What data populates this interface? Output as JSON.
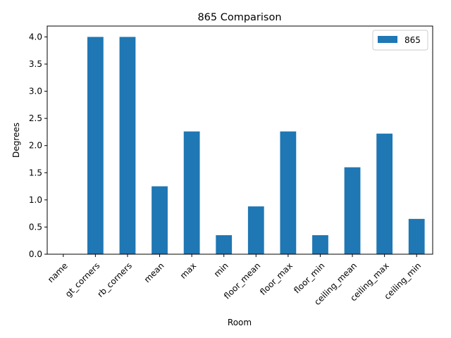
{
  "chart_data": {
    "type": "bar",
    "title": "865 Comparison",
    "xlabel": "Room",
    "ylabel": "Degrees",
    "categories": [
      "name",
      "gt_corners",
      "rb_corners",
      "mean",
      "max",
      "min",
      "floor_mean",
      "floor_max",
      "floor_min",
      "ceiling_mean",
      "ceiling_max",
      "ceiling_min"
    ],
    "series": [
      {
        "name": "865",
        "color": "#1f77b4",
        "values": [
          0,
          4.0,
          4.0,
          1.25,
          2.26,
          0.35,
          0.88,
          2.26,
          0.35,
          1.6,
          2.22,
          0.65
        ]
      }
    ],
    "ylim": [
      0,
      4.2
    ],
    "yticks": [
      "0.0",
      "0.5",
      "1.0",
      "1.5",
      "2.0",
      "2.5",
      "3.0",
      "3.5",
      "4.0"
    ],
    "grid": false,
    "legend_position": "top-right"
  }
}
